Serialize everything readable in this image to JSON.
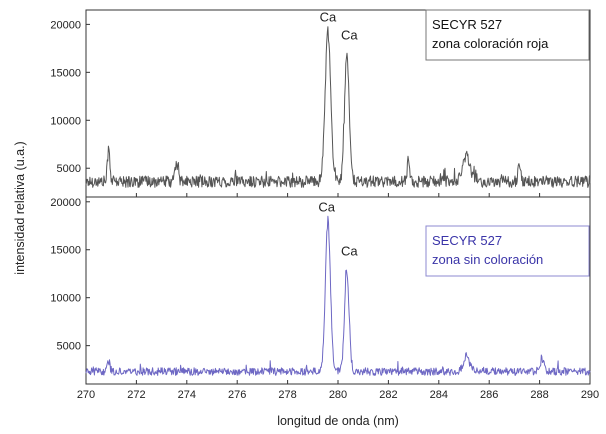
{
  "chart_data": [
    {
      "type": "line",
      "title": "",
      "legend": {
        "lines": [
          "SECYR 527",
          "zona coloración roja"
        ],
        "position": "top-right",
        "text_color": "#111111",
        "border_color": "#777777"
      },
      "line_color": "#555555",
      "xlabel": "longitud de onda (nm)",
      "ylabel": "intensidad relativa (u.a.)",
      "xlim": [
        270,
        290
      ],
      "ylim": [
        2000,
        21500
      ],
      "yticks": [
        "20000",
        "15000",
        "10000",
        "5000"
      ],
      "ytick_values": [
        20000,
        15000,
        10000,
        5000
      ],
      "grid": false,
      "annotations": [
        {
          "text": "Ca",
          "x": 279.6,
          "y": 20300
        },
        {
          "text": "Ca",
          "x": 280.45,
          "y": 18400
        }
      ],
      "baseline": 3600,
      "noise": 600,
      "peaks": [
        {
          "x": 270.9,
          "y": 7000,
          "w": 0.05
        },
        {
          "x": 273.6,
          "y": 5500,
          "w": 0.06
        },
        {
          "x": 279.6,
          "y": 19200,
          "w": 0.11
        },
        {
          "x": 280.35,
          "y": 17000,
          "w": 0.09
        },
        {
          "x": 282.8,
          "y": 6000,
          "w": 0.05
        },
        {
          "x": 285.1,
          "y": 6300,
          "w": 0.15
        },
        {
          "x": 287.2,
          "y": 5200,
          "w": 0.06
        }
      ]
    },
    {
      "type": "line",
      "title": "",
      "legend": {
        "lines": [
          "SECYR 527",
          "zona sin coloración"
        ],
        "position": "top-right",
        "text_color": "#3a34a8",
        "border_color": "#8d8ad0"
      },
      "line_color": "#6e68c4",
      "xlabel": "longitud de onda (nm)",
      "ylabel": "intensidad relativa (u.a.)",
      "xlim": [
        270,
        290
      ],
      "ylim": [
        1000,
        20500
      ],
      "xticks": [
        "270",
        "272",
        "274",
        "276",
        "278",
        "280",
        "282",
        "284",
        "286",
        "288",
        "290"
      ],
      "xtick_values": [
        270,
        272,
        274,
        276,
        278,
        280,
        282,
        284,
        286,
        288,
        290
      ],
      "yticks": [
        "20000",
        "15000",
        "10000",
        "5000"
      ],
      "ytick_values": [
        20000,
        15000,
        10000,
        5000
      ],
      "grid": false,
      "annotations": [
        {
          "text": "Ca",
          "x": 279.55,
          "y": 19000
        },
        {
          "text": "Ca",
          "x": 280.45,
          "y": 14400
        }
      ],
      "baseline": 2300,
      "noise": 400,
      "peaks": [
        {
          "x": 270.9,
          "y": 3400,
          "w": 0.05
        },
        {
          "x": 279.6,
          "y": 18000,
          "w": 0.1
        },
        {
          "x": 280.35,
          "y": 12800,
          "w": 0.09
        },
        {
          "x": 285.1,
          "y": 3900,
          "w": 0.12
        },
        {
          "x": 288.1,
          "y": 3600,
          "w": 0.08
        }
      ]
    }
  ]
}
